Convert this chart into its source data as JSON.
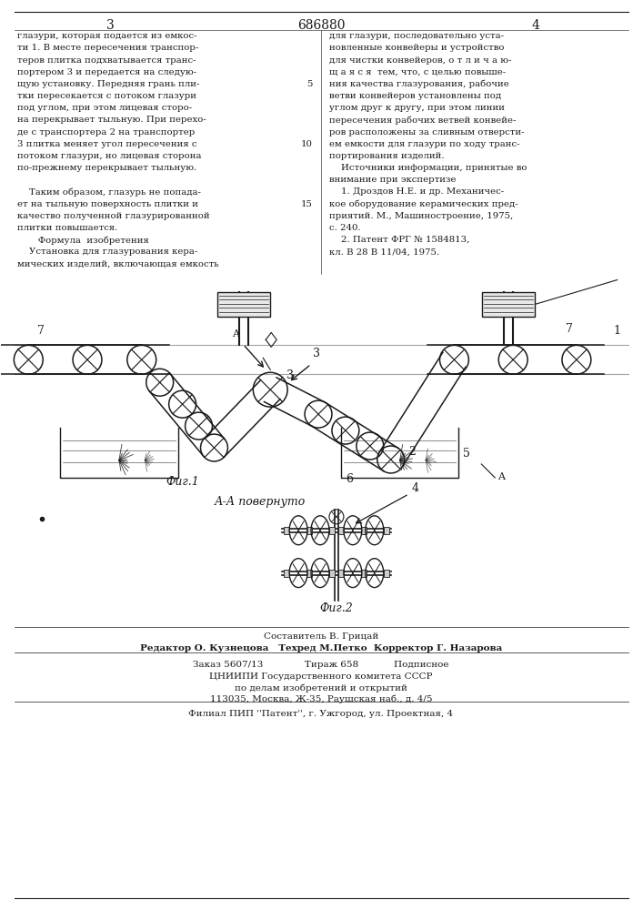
{
  "patent_number": "686880",
  "page_left": "3",
  "page_right": "4",
  "bg_color": "#ffffff",
  "text_color": "#1a1a1a",
  "left_column_text": [
    "глазури, которая подается из емкос-",
    "ти 1. В месте пересечения транспор-",
    "теров плитка подхватывается транс-",
    "портером 3 и передается на следую-",
    "щую установку. Передняя грань пли-",
    "тки пересекается с потоком глазури",
    "под углом, при этом лицевая сторо-",
    "на перекрывает тыльную. При перехо-",
    "де с транспортера 2 на транспортер",
    "3 плитка меняет угол пересечения с",
    "потоком глазури, но лицевая сторона",
    "по-прежнему перекрывает тыльную.",
    "",
    "    Таким образом, глазурь не попада-",
    "ет на тыльную поверхность плитки и",
    "качество полученной глазурированной",
    "плитки повышается.",
    "       Формула  изобретения",
    "    Установка для глазурования кера-",
    "мических изделий, включающая емкость"
  ],
  "right_column_text": [
    "для глазури, последовательно уста-",
    "новленные конвейеры и устройство",
    "для чистки конвейеров, о т л и ч а ю-",
    "щ а я с я  тем, что, с целью повыше-",
    "ния качества глазурования, рабочие",
    "ветви конвейеров установлены под",
    "углом друг к другу, при этом линии",
    "пересечения рабочих ветвей конвейе-",
    "ров расположены за сливным отверсти-",
    "ем емкости для глазури по ходу транс-",
    "портирования изделий.",
    "    Источники информации, принятые во",
    "внимание при экспертизе",
    "    1. Дроздов Н.Е. и др. Механичес-",
    "кое оборудование керамических пред-",
    "приятий. М., Машиностроение, 1975,",
    "с. 240.",
    "    2. Патент ФРГ № 1584813,",
    "кл. В 28 В 11/04, 1975."
  ],
  "fig1_caption": "Фиг.1",
  "fig2_caption": "Фиг.2",
  "section_label": "А-А повернуто",
  "footer_lines": [
    "Составитель В. Грицай",
    "Редактор О. Кузнецова   Техред М.Петко  Корректор Г. Назарова",
    "Заказ 5607/13              Тираж 658            Подписное",
    "ЦНИИПИ Государственного комитета СССР",
    "по делам изобретений и открытий",
    "113035, Москва, Ж-35, Раушская наб., д. 4/5",
    "Филиал ПИП ''Патент'', г. Ужгород, ул. Проектная, 4"
  ]
}
